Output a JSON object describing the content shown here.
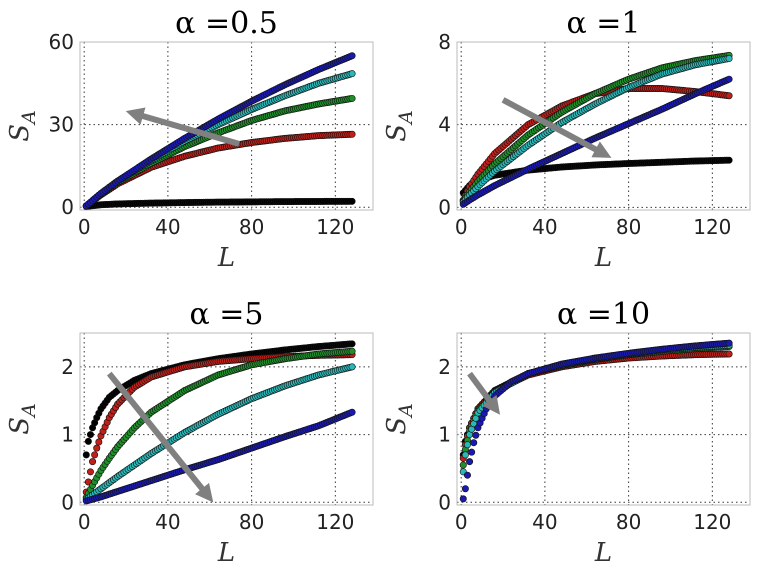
{
  "chart_data": [
    {
      "type": "scatter",
      "title": "α =0.5",
      "xlabel": "L",
      "ylabel": "S_A",
      "xlim": [
        -2,
        138
      ],
      "ylim": [
        -1,
        60
      ],
      "xticks": [
        0,
        40,
        80,
        120
      ],
      "yticks": [
        0,
        30,
        60
      ],
      "grid": true,
      "arrow": {
        "from": [
          74,
          23
        ],
        "to": [
          24,
          34
        ],
        "color": "#808080"
      },
      "series": [
        {
          "color": "#000000",
          "points": [
            [
              1,
              0.3
            ],
            [
              8,
              0.9
            ],
            [
              16,
              1.2
            ],
            [
              32,
              1.5
            ],
            [
              48,
              1.7
            ],
            [
              64,
              1.85
            ],
            [
              80,
              1.95
            ],
            [
              96,
              2.05
            ],
            [
              112,
              2.1
            ],
            [
              128,
              2.15
            ]
          ]
        },
        {
          "color": "#c0201a",
          "points": [
            [
              1,
              0.5
            ],
            [
              8,
              4.5
            ],
            [
              16,
              8.5
            ],
            [
              32,
              14.5
            ],
            [
              48,
              18.5
            ],
            [
              64,
              21.5
            ],
            [
              80,
              23.5
            ],
            [
              96,
              25
            ],
            [
              112,
              26
            ],
            [
              128,
              26.5
            ]
          ]
        },
        {
          "color": "#1f8f2a",
          "points": [
            [
              1,
              0.5
            ],
            [
              8,
              4.8
            ],
            [
              16,
              9
            ],
            [
              32,
              16
            ],
            [
              48,
              22
            ],
            [
              64,
              27
            ],
            [
              80,
              31.5
            ],
            [
              96,
              35
            ],
            [
              112,
              37.5
            ],
            [
              128,
              39.5
            ]
          ]
        },
        {
          "color": "#2bb7b7",
          "points": [
            [
              1,
              0.5
            ],
            [
              8,
              5
            ],
            [
              16,
              9.5
            ],
            [
              32,
              17
            ],
            [
              48,
              24
            ],
            [
              64,
              30
            ],
            [
              80,
              35.5
            ],
            [
              96,
              40.5
            ],
            [
              112,
              45
            ],
            [
              128,
              48.5
            ]
          ]
        },
        {
          "color": "#1a1ab0",
          "points": [
            [
              1,
              0.5
            ],
            [
              8,
              5
            ],
            [
              16,
              9.5
            ],
            [
              32,
              17.5
            ],
            [
              48,
              25
            ],
            [
              64,
              32
            ],
            [
              80,
              38.5
            ],
            [
              96,
              44.5
            ],
            [
              112,
              50
            ],
            [
              128,
              55
            ]
          ]
        }
      ]
    },
    {
      "type": "scatter",
      "title": "α =1",
      "xlabel": "L",
      "ylabel": "S_A",
      "xlim": [
        -2,
        138
      ],
      "ylim": [
        -0.13,
        8
      ],
      "xticks": [
        0,
        40,
        80,
        120
      ],
      "yticks": [
        0,
        4,
        8
      ],
      "grid": true,
      "arrow": {
        "from": [
          20,
          5.2
        ],
        "to": [
          68,
          2.6
        ],
        "color": "#808080"
      },
      "series": [
        {
          "color": "#000000",
          "points": [
            [
              1,
              0.7
            ],
            [
              4,
              1.05
            ],
            [
              8,
              1.3
            ],
            [
              16,
              1.55
            ],
            [
              32,
              1.8
            ],
            [
              48,
              1.95
            ],
            [
              64,
              2.05
            ],
            [
              80,
              2.12
            ],
            [
              96,
              2.18
            ],
            [
              112,
              2.24
            ],
            [
              128,
              2.28
            ]
          ]
        },
        {
          "color": "#c0201a",
          "points": [
            [
              1,
              0.35
            ],
            [
              4,
              1
            ],
            [
              8,
              1.6
            ],
            [
              16,
              2.6
            ],
            [
              32,
              4
            ],
            [
              48,
              4.9
            ],
            [
              64,
              5.5
            ],
            [
              80,
              5.75
            ],
            [
              96,
              5.75
            ],
            [
              112,
              5.6
            ],
            [
              128,
              5.4
            ]
          ]
        },
        {
          "color": "#1f8f2a",
          "points": [
            [
              1,
              0.3
            ],
            [
              4,
              0.75
            ],
            [
              8,
              1.25
            ],
            [
              16,
              2.1
            ],
            [
              32,
              3.5
            ],
            [
              48,
              4.6
            ],
            [
              64,
              5.5
            ],
            [
              80,
              6.2
            ],
            [
              96,
              6.75
            ],
            [
              112,
              7.1
            ],
            [
              128,
              7.35
            ]
          ]
        },
        {
          "color": "#2bb7b7",
          "points": [
            [
              1,
              0.25
            ],
            [
              4,
              0.6
            ],
            [
              8,
              1
            ],
            [
              16,
              1.75
            ],
            [
              32,
              3
            ],
            [
              48,
              4.1
            ],
            [
              64,
              5
            ],
            [
              80,
              5.8
            ],
            [
              96,
              6.45
            ],
            [
              112,
              6.9
            ],
            [
              128,
              7.2
            ]
          ]
        },
        {
          "color": "#1a1ab0",
          "points": [
            [
              1,
              0.15
            ],
            [
              4,
              0.35
            ],
            [
              8,
              0.6
            ],
            [
              16,
              1.05
            ],
            [
              32,
              1.85
            ],
            [
              48,
              2.6
            ],
            [
              64,
              3.35
            ],
            [
              80,
              4.05
            ],
            [
              96,
              4.75
            ],
            [
              112,
              5.5
            ],
            [
              128,
              6.2
            ]
          ]
        }
      ]
    },
    {
      "type": "scatter",
      "title": "α =5",
      "xlabel": "L",
      "ylabel": "S_A",
      "xlim": [
        -2,
        138
      ],
      "ylim": [
        -0.04,
        2.5
      ],
      "xticks": [
        0,
        40,
        80,
        120
      ],
      "yticks": [
        0,
        1,
        2
      ],
      "grid": true,
      "arrow": {
        "from": [
          12,
          1.9
        ],
        "to": [
          59,
          0.1
        ],
        "color": "#808080"
      },
      "series": [
        {
          "color": "#000000",
          "points": [
            [
              1,
              0.7
            ],
            [
              2,
              0.9
            ],
            [
              4,
              1.1
            ],
            [
              6,
              1.25
            ],
            [
              8,
              1.38
            ],
            [
              12,
              1.55
            ],
            [
              16,
              1.65
            ],
            [
              24,
              1.8
            ],
            [
              32,
              1.9
            ],
            [
              48,
              2.03
            ],
            [
              64,
              2.12
            ],
            [
              80,
              2.19
            ],
            [
              96,
              2.25
            ],
            [
              112,
              2.3
            ],
            [
              128,
              2.34
            ]
          ]
        },
        {
          "color": "#c0201a",
          "points": [
            [
              1,
              0.15
            ],
            [
              2,
              0.3
            ],
            [
              4,
              0.6
            ],
            [
              6,
              0.8
            ],
            [
              8,
              0.98
            ],
            [
              12,
              1.25
            ],
            [
              16,
              1.45
            ],
            [
              24,
              1.7
            ],
            [
              32,
              1.85
            ],
            [
              48,
              2
            ],
            [
              64,
              2.08
            ],
            [
              80,
              2.12
            ],
            [
              96,
              2.15
            ],
            [
              112,
              2.17
            ],
            [
              128,
              2.18
            ]
          ]
        },
        {
          "color": "#1f8f2a",
          "points": [
            [
              1,
              0.07
            ],
            [
              4,
              0.25
            ],
            [
              8,
              0.47
            ],
            [
              12,
              0.65
            ],
            [
              16,
              0.82
            ],
            [
              24,
              1.1
            ],
            [
              32,
              1.33
            ],
            [
              48,
              1.65
            ],
            [
              64,
              1.88
            ],
            [
              80,
              2.03
            ],
            [
              96,
              2.12
            ],
            [
              112,
              2.19
            ],
            [
              128,
              2.23
            ]
          ]
        },
        {
          "color": "#2bb7b7",
          "points": [
            [
              1,
              0.04
            ],
            [
              8,
              0.2
            ],
            [
              16,
              0.38
            ],
            [
              24,
              0.55
            ],
            [
              32,
              0.72
            ],
            [
              48,
              1.03
            ],
            [
              64,
              1.3
            ],
            [
              80,
              1.53
            ],
            [
              96,
              1.72
            ],
            [
              112,
              1.88
            ],
            [
              128,
              2
            ]
          ]
        },
        {
          "color": "#1a1ab0",
          "points": [
            [
              1,
              0.02
            ],
            [
              8,
              0.08
            ],
            [
              16,
              0.16
            ],
            [
              32,
              0.32
            ],
            [
              48,
              0.48
            ],
            [
              64,
              0.63
            ],
            [
              80,
              0.8
            ],
            [
              96,
              0.97
            ],
            [
              112,
              1.13
            ],
            [
              128,
              1.33
            ]
          ]
        }
      ]
    },
    {
      "type": "scatter",
      "title": "α =10",
      "xlabel": "L",
      "ylabel": "S_A",
      "xlim": [
        -2,
        138
      ],
      "ylim": [
        -0.04,
        2.5
      ],
      "xticks": [
        0,
        40,
        80,
        120
      ],
      "yticks": [
        0,
        1,
        2
      ],
      "grid": true,
      "arrow": {
        "from": [
          4,
          1.9
        ],
        "to": [
          16,
          1.4
        ],
        "color": "#808080"
      },
      "series": [
        {
          "color": "#000000",
          "points": [
            [
              1,
              0.7
            ],
            [
              2,
              0.9
            ],
            [
              4,
              1.1
            ],
            [
              8,
              1.38
            ],
            [
              16,
              1.65
            ],
            [
              32,
              1.9
            ],
            [
              48,
              2.03
            ],
            [
              64,
              2.12
            ],
            [
              80,
              2.19
            ],
            [
              96,
              2.25
            ],
            [
              112,
              2.3
            ],
            [
              128,
              2.34
            ]
          ]
        },
        {
          "color": "#c0201a",
          "points": [
            [
              1,
              0.65
            ],
            [
              2,
              0.85
            ],
            [
              4,
              1.1
            ],
            [
              8,
              1.38
            ],
            [
              16,
              1.64
            ],
            [
              32,
              1.88
            ],
            [
              48,
              2.0
            ],
            [
              64,
              2.08
            ],
            [
              80,
              2.13
            ],
            [
              96,
              2.16
            ],
            [
              112,
              2.18
            ],
            [
              128,
              2.19
            ]
          ]
        },
        {
          "color": "#1f8f2a",
          "points": [
            [
              1,
              0.55
            ],
            [
              2,
              0.78
            ],
            [
              4,
              1.05
            ],
            [
              8,
              1.35
            ],
            [
              16,
              1.63
            ],
            [
              32,
              1.9
            ],
            [
              48,
              2.02
            ],
            [
              64,
              2.11
            ],
            [
              80,
              2.18
            ],
            [
              96,
              2.23
            ],
            [
              112,
              2.27
            ],
            [
              128,
              2.3
            ]
          ]
        },
        {
          "color": "#2bb7b7",
          "points": [
            [
              1,
              0.45
            ],
            [
              2,
              0.7
            ],
            [
              4,
              1.0
            ],
            [
              8,
              1.32
            ],
            [
              16,
              1.62
            ],
            [
              32,
              1.9
            ],
            [
              48,
              2.03
            ],
            [
              64,
              2.12
            ],
            [
              80,
              2.19
            ],
            [
              96,
              2.25
            ],
            [
              112,
              2.29
            ],
            [
              128,
              2.32
            ]
          ]
        },
        {
          "color": "#1a1ab0",
          "points": [
            [
              1,
              0.05
            ],
            [
              2,
              0.2
            ],
            [
              3,
              0.4
            ],
            [
              4,
              0.6
            ],
            [
              6,
              0.88
            ],
            [
              8,
              1.1
            ],
            [
              12,
              1.38
            ],
            [
              16,
              1.57
            ],
            [
              24,
              1.78
            ],
            [
              32,
              1.9
            ],
            [
              48,
              2.04
            ],
            [
              64,
              2.13
            ],
            [
              80,
              2.2
            ],
            [
              96,
              2.26
            ],
            [
              112,
              2.31
            ],
            [
              128,
              2.35
            ]
          ]
        }
      ]
    }
  ]
}
